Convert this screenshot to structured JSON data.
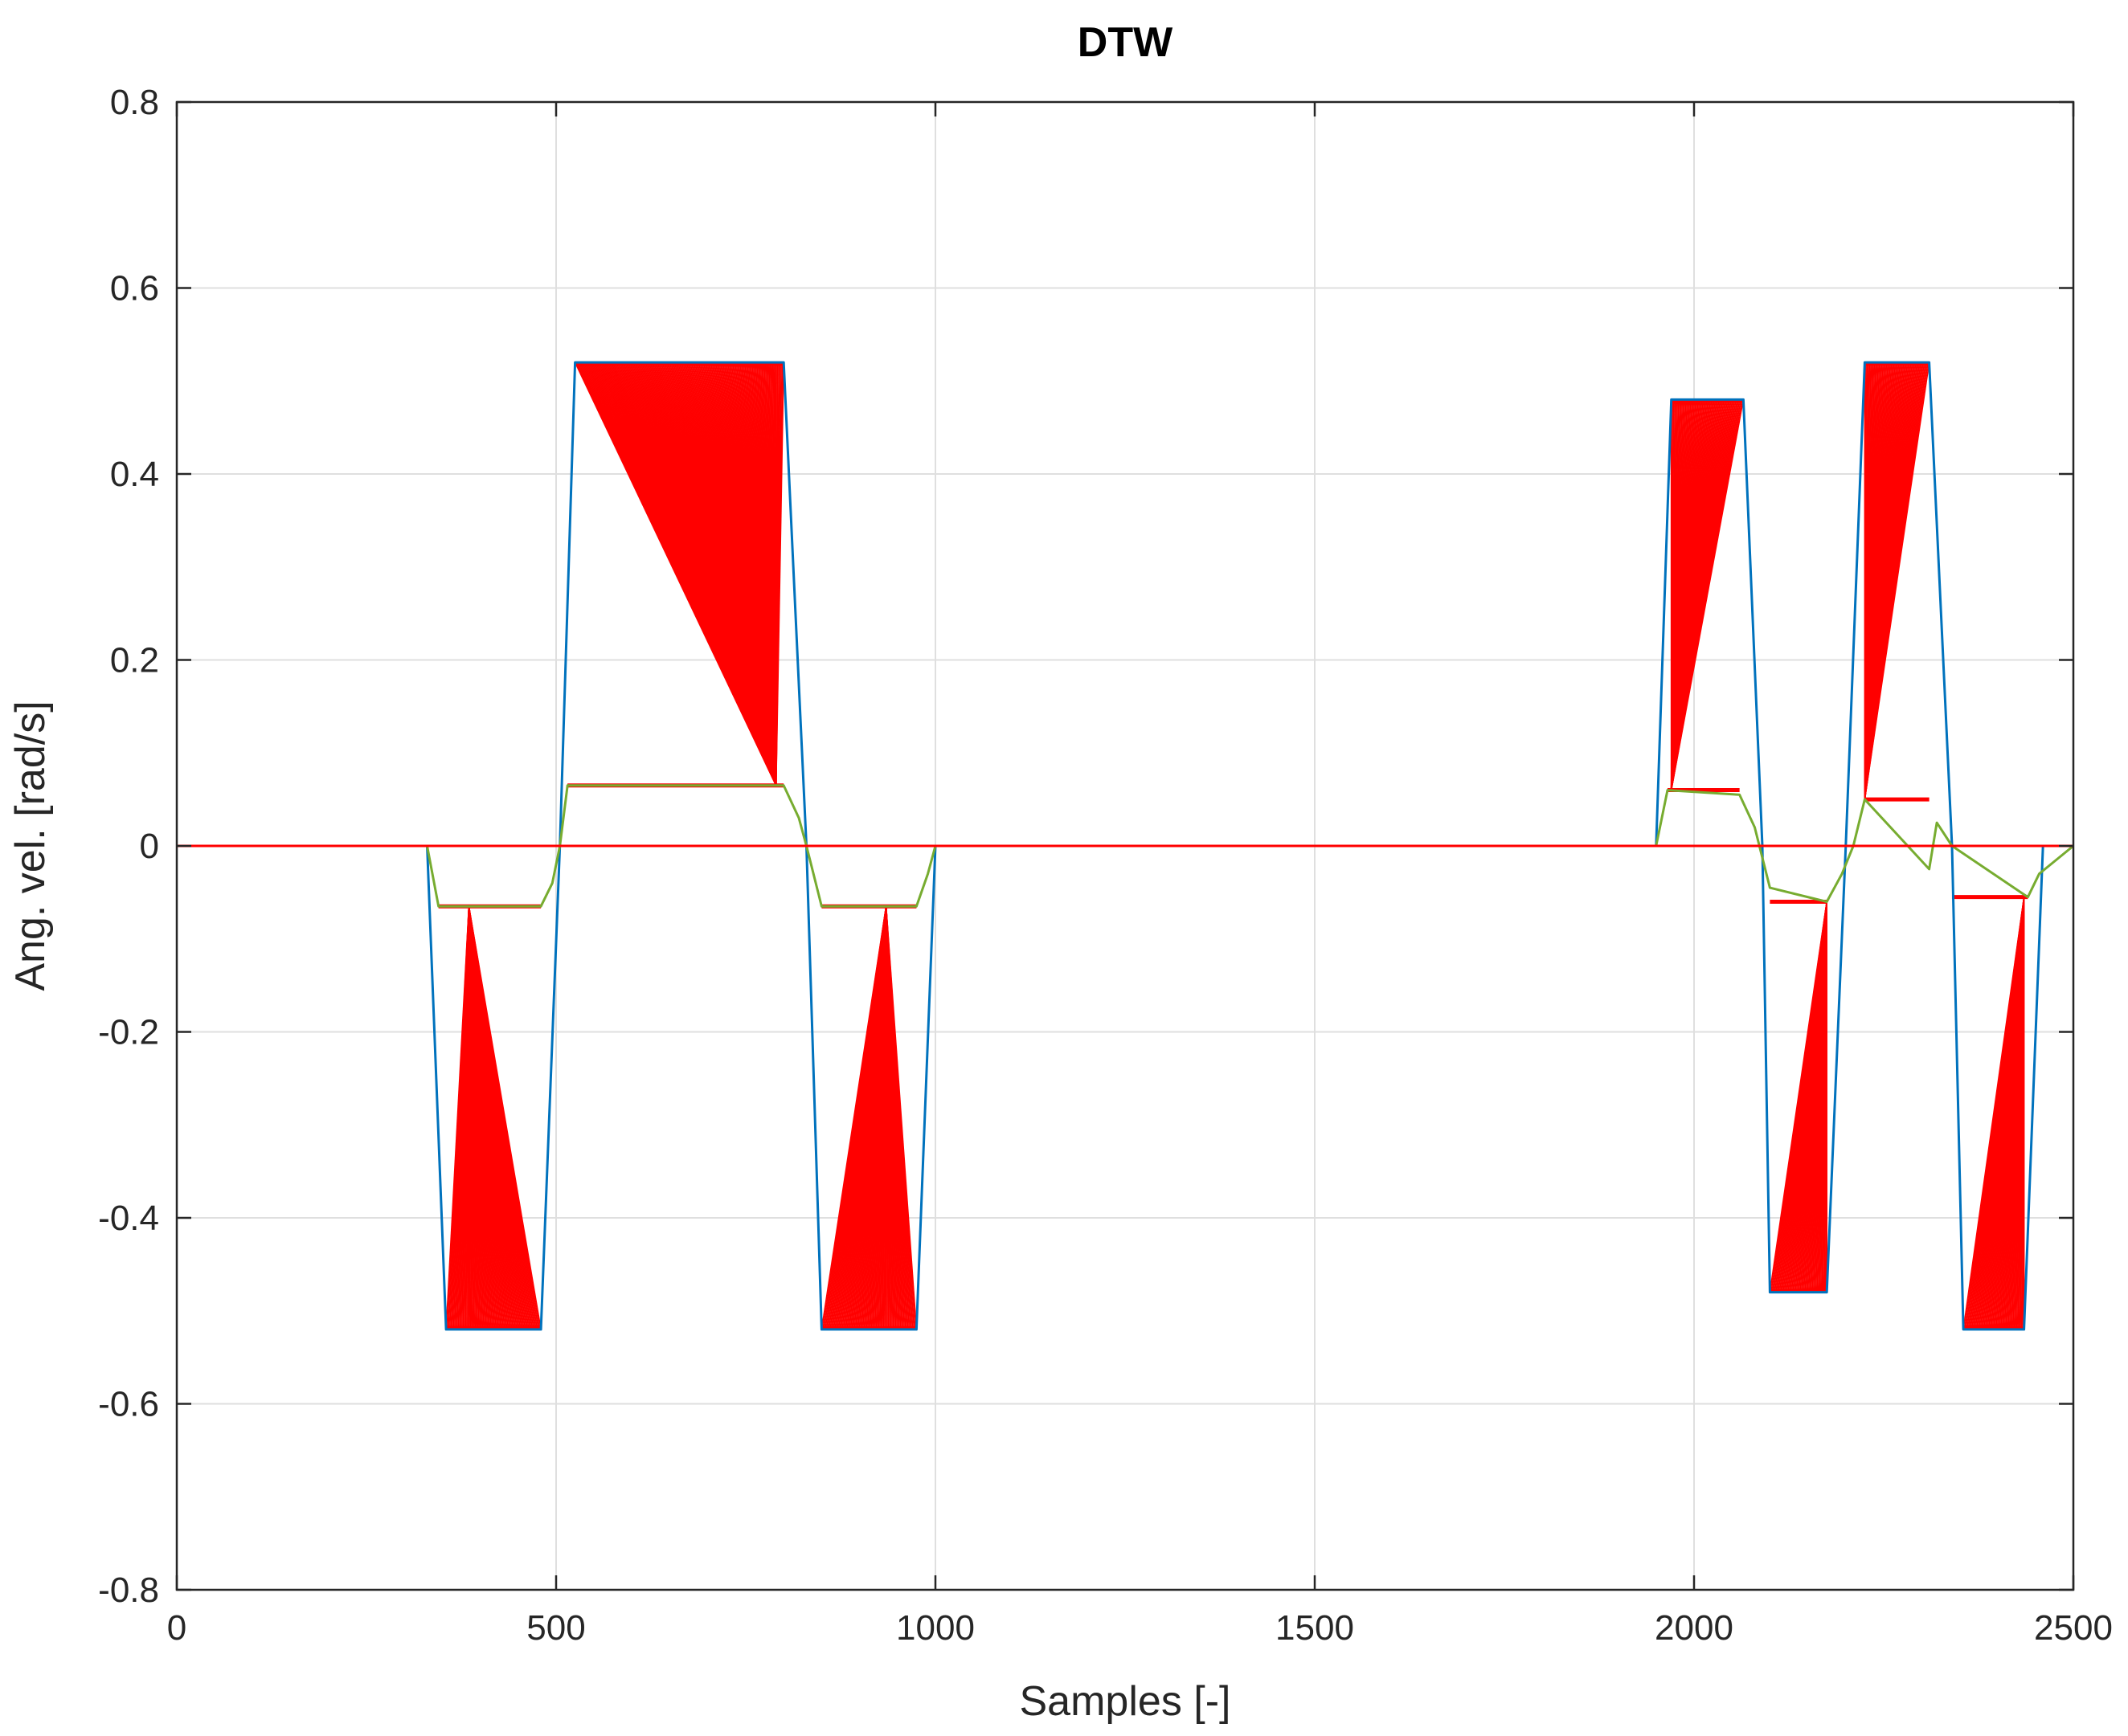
{
  "colors": {
    "reference": "#0072BD",
    "query": "#77AC30",
    "warp": "#FF0000",
    "grid": "#DFDFDF",
    "axis": "#262626"
  },
  "chart_data": {
    "type": "line",
    "title": "DTW",
    "xlabel": "Samples [-]",
    "ylabel": "Ang. vel. [rad/s]",
    "xlim": [
      0,
      2500
    ],
    "ylim": [
      -0.8,
      0.8
    ],
    "xticks": [
      "0",
      "500",
      "1000",
      "1500",
      "2000",
      "2500"
    ],
    "yticks": [
      "-0.8",
      "-0.6",
      "-0.4",
      "-0.2",
      "0",
      "0.2",
      "0.4",
      "0.6",
      "0.8"
    ],
    "grid": true,
    "series": [
      {
        "key": "reference",
        "x": [
          0,
          330,
          355,
          480,
          505,
          525,
          800,
          830,
          850,
          975,
          1000,
          1950,
          1970,
          2065,
          2090,
          2100,
          2175,
          2200,
          2225,
          2310,
          2340,
          2355,
          2435,
          2460,
          2500
        ],
        "y": [
          0,
          0,
          -0.52,
          -0.52,
          0,
          0.52,
          0.52,
          0,
          -0.52,
          -0.52,
          0,
          0,
          0.48,
          0.48,
          0,
          -0.48,
          -0.48,
          0,
          0.52,
          0.52,
          0,
          -0.52,
          -0.52,
          0,
          0
        ]
      },
      {
        "key": "query",
        "x": [
          0,
          330,
          345,
          480,
          495,
          505,
          515,
          800,
          820,
          830,
          850,
          975,
          990,
          1000,
          1950,
          1965,
          2060,
          2080,
          2100,
          2175,
          2195,
          2210,
          2225,
          2310,
          2320,
          2340,
          2440,
          2455,
          2500
        ],
        "y": [
          0,
          0,
          -0.065,
          -0.065,
          -0.04,
          0,
          0.065,
          0.065,
          0.03,
          0,
          -0.065,
          -0.065,
          -0.03,
          0,
          0,
          0.06,
          0.055,
          0.02,
          -0.045,
          -0.06,
          -0.03,
          0,
          0.05,
          -0.025,
          0.025,
          0,
          -0.055,
          -0.03,
          0
        ]
      }
    ],
    "warp_segments": [
      {
        "x": [
          355,
          480
        ],
        "y": -0.52,
        "target_x": [
          345,
          480
        ],
        "target_y": -0.065,
        "apex_x": 385
      },
      {
        "x": [
          525,
          800
        ],
        "y": 0.52,
        "target_x": [
          515,
          800
        ],
        "target_y": 0.065,
        "apex_x": 790
      },
      {
        "x": [
          850,
          975
        ],
        "y": -0.52,
        "target_x": [
          850,
          975
        ],
        "target_y": -0.065,
        "apex_x": 935
      },
      {
        "x": [
          1970,
          2065
        ],
        "y": 0.48,
        "target_x": [
          1965,
          2060
        ],
        "target_y": 0.06,
        "apex_x": 1970
      },
      {
        "x": [
          2100,
          2175
        ],
        "y": -0.48,
        "target_x": [
          2100,
          2175
        ],
        "target_y": -0.06,
        "apex_x": 2175
      },
      {
        "x": [
          2225,
          2310
        ],
        "y": 0.52,
        "target_x": [
          2225,
          2310
        ],
        "target_y": 0.05,
        "apex_x": 2225
      },
      {
        "x": [
          2355,
          2435
        ],
        "y": -0.52,
        "target_x": [
          2340,
          2440
        ],
        "target_y": -0.055,
        "apex_x": 2435
      }
    ]
  }
}
